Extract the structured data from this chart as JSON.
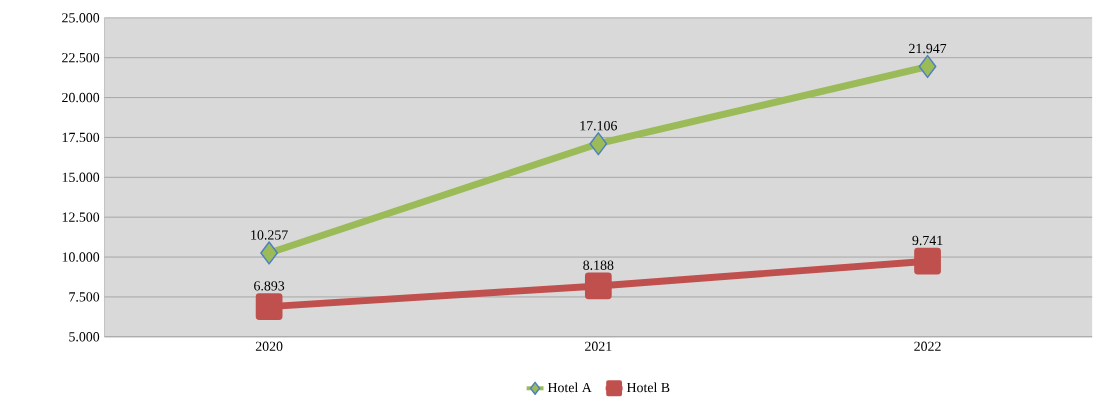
{
  "chart_data": {
    "type": "line",
    "categories": [
      "2020",
      "2021",
      "2022"
    ],
    "series": [
      {
        "name": "Hotel A",
        "color": "#9bbb59",
        "marker": "diamond",
        "values": [
          10257,
          17106,
          21947
        ],
        "value_labels": [
          "10.257",
          "17.106",
          "21.947"
        ]
      },
      {
        "name": "Hotel B",
        "color": "#c0504d",
        "marker": "square",
        "values": [
          6893,
          8188,
          9741
        ],
        "value_labels": [
          "6.893",
          "8.188",
          "9.741"
        ]
      }
    ],
    "ylim": [
      5000,
      25000
    ],
    "yticks": [
      {
        "value": 5000,
        "label": "5.000"
      },
      {
        "value": 7500,
        "label": "7.500"
      },
      {
        "value": 10000,
        "label": "10.000"
      },
      {
        "value": 12500,
        "label": "12.500"
      },
      {
        "value": 15000,
        "label": "15.000"
      },
      {
        "value": 17500,
        "label": "17.500"
      },
      {
        "value": 20000,
        "label": "20.000"
      },
      {
        "value": 22500,
        "label": "22.500"
      },
      {
        "value": 25000,
        "label": "25.000"
      }
    ],
    "grid": "y",
    "legend": "bottom",
    "line_style": "solid"
  }
}
